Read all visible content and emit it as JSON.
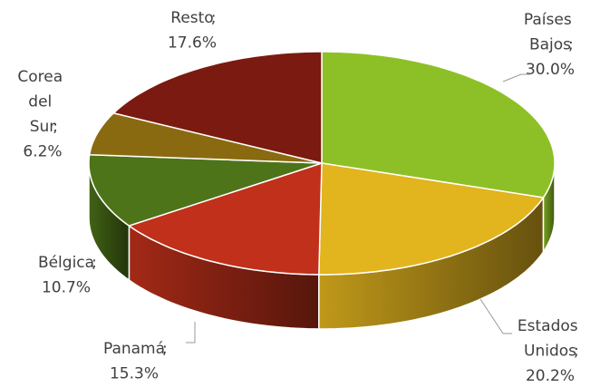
{
  "chart_data": {
    "type": "pie3d",
    "categories": [
      "Países Bajos",
      "Estados Unidos",
      "Panamá",
      "Bélgica",
      "Corea del Sur",
      "Resto"
    ],
    "values": [
      30.0,
      20.2,
      15.3,
      10.7,
      6.2,
      17.6
    ],
    "value_labels": [
      "30.0%",
      "20.2%",
      "15.3%",
      "10.7%",
      "6.2%",
      "17.6%"
    ],
    "label_separator": ";",
    "colors": [
      "#8dc026",
      "#e2b41e",
      "#c0301a",
      "#4d7419",
      "#8a6a10",
      "#7b1a10"
    ]
  }
}
